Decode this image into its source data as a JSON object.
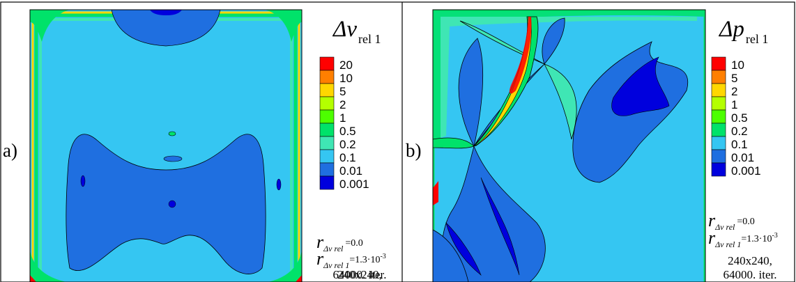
{
  "panels": [
    {
      "id": "a",
      "panel_label": "a)",
      "title_symbol": "Δv",
      "title_subscript": "rel 1",
      "legend": {
        "levels": [
          "20",
          "10",
          "5",
          "2",
          "1",
          "0.5",
          "0.2",
          "0.1",
          "0.01",
          "0.001"
        ],
        "colors": [
          "#ff0000",
          "#ff7f00",
          "#ffd700",
          "#b4ff00",
          "#4dff00",
          "#00e26a",
          "#3fe6b4",
          "#35c6f2",
          "#1f6fe0",
          "#0000dd"
        ]
      },
      "annotations": {
        "r1_symbol": "r",
        "r1_subscript": "Δv rel",
        "r1_value": "=0.0",
        "r2_symbol": "r",
        "r2_subscript": "Δv rel 1",
        "r2_value": "=1.3·10",
        "r2_exponent": "-3",
        "grid": "240x240,",
        "iterations": "64000. iter."
      }
    },
    {
      "id": "b",
      "panel_label": "b)",
      "title_symbol": "Δp",
      "title_subscript": "rel 1",
      "legend": {
        "levels": [
          "10",
          "5",
          "2",
          "1",
          "0.5",
          "0.2",
          "0.1",
          "0.01",
          "0.001"
        ],
        "colors": [
          "#ff0000",
          "#ff7f00",
          "#ffd700",
          "#b4ff00",
          "#4dff00",
          "#00e26a",
          "#35c6f2",
          "#1f6fe0",
          "#0000dd"
        ]
      },
      "annotations": {
        "r1_symbol": "r",
        "r1_subscript": "Δv rel",
        "r1_value": "=0.0",
        "r2_symbol": "r",
        "r2_subscript": "Δv rel 1",
        "r2_value": "=1.3·10",
        "r2_exponent": "-3",
        "grid": "240x240,",
        "iterations": "64000. iter."
      }
    }
  ],
  "fill_colors": {
    "background": "#35c6f2",
    "band": "#1f6fe0",
    "core": "#0000dd",
    "edge_green": "#00e26a",
    "edge_light": "#3fe6b4",
    "edge_yellow": "#ffd700",
    "edge_red": "#ff0000"
  }
}
